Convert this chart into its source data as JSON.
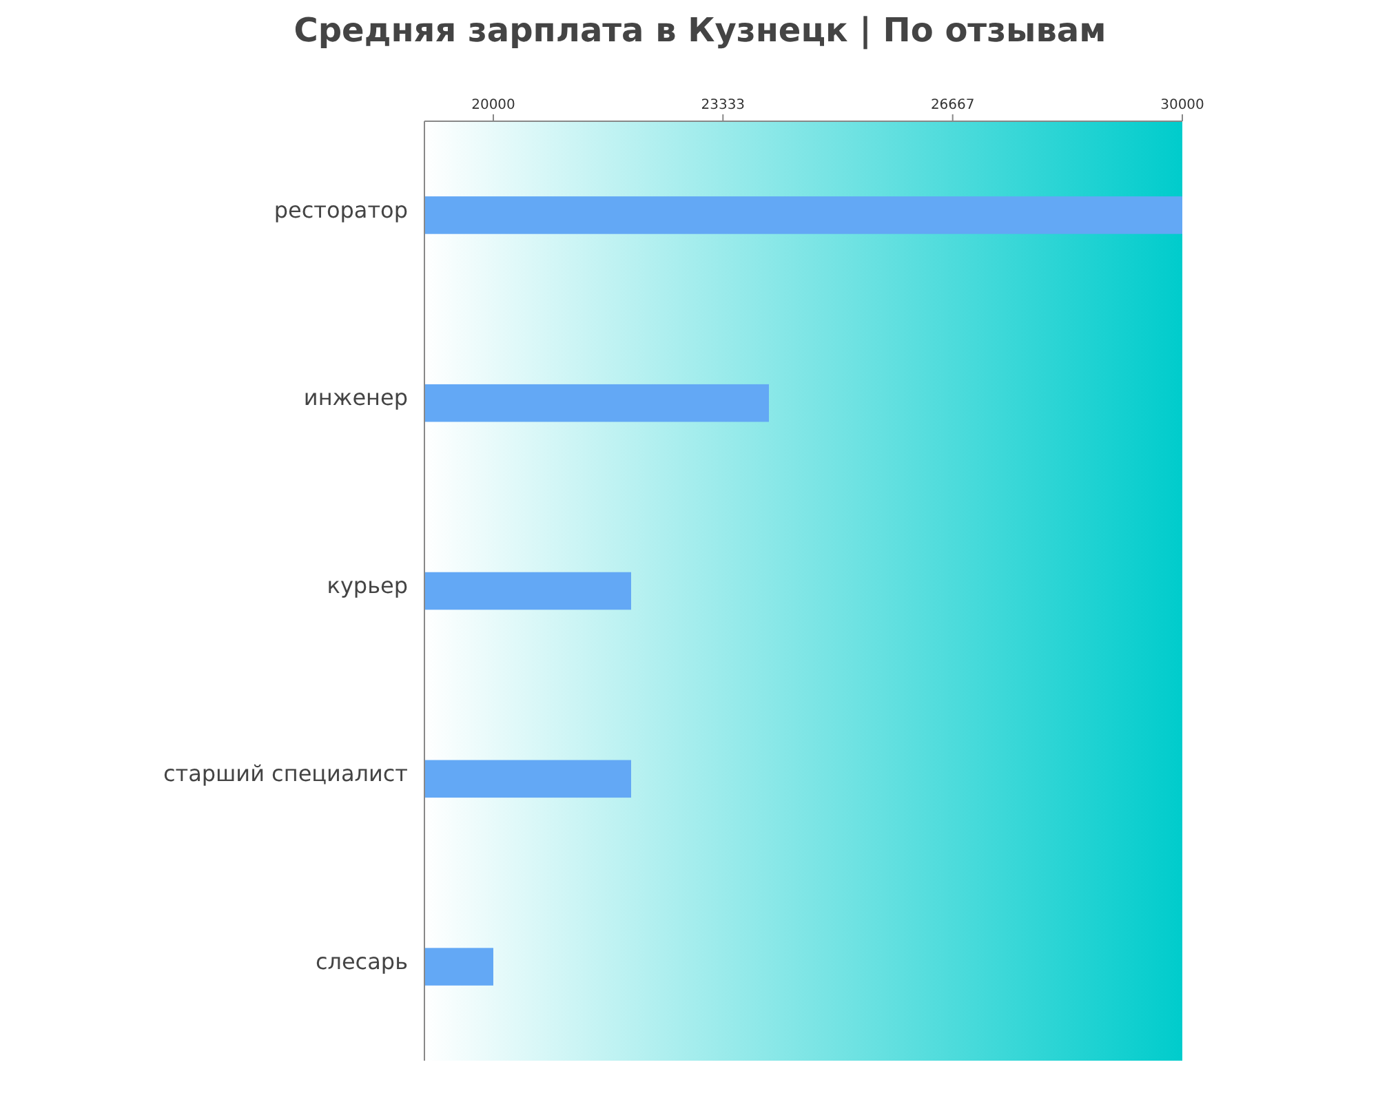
{
  "chart_data": {
    "type": "bar",
    "orientation": "horizontal",
    "title": "Средняя зарплата в Кузнецк | По отзывам",
    "categories": [
      "ресторатор",
      "инженер",
      "курьер",
      "старший специалист",
      "слесарь"
    ],
    "values": [
      30000,
      24000,
      22000,
      22000,
      20000
    ],
    "color": "#63a8f5",
    "xlim": [
      19000,
      30000
    ],
    "xticks": [
      20000,
      23333,
      26667,
      30000
    ],
    "grid": false
  }
}
